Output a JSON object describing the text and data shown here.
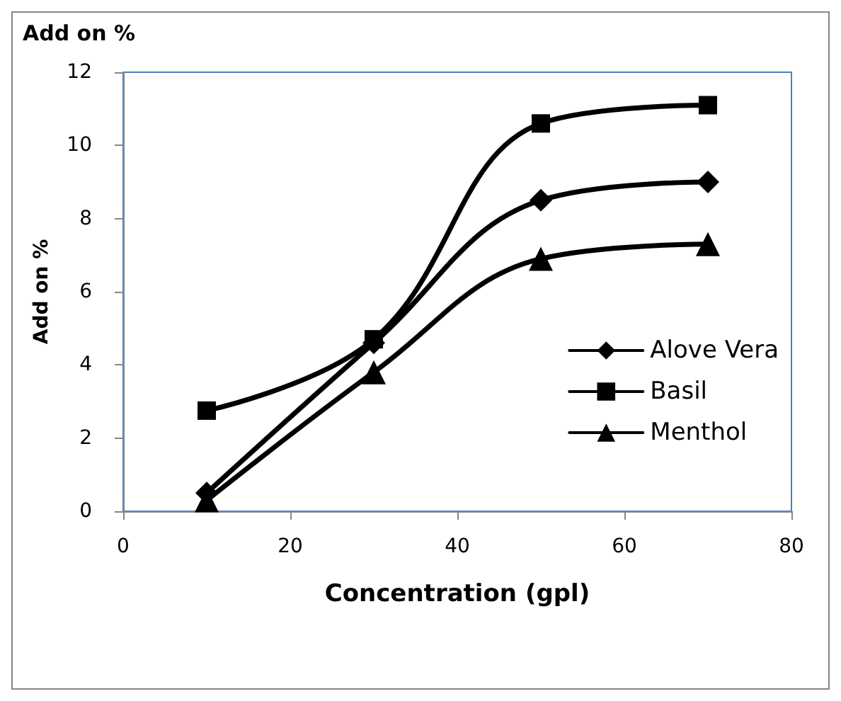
{
  "chart_data": {
    "type": "line",
    "title": "Add on %",
    "xlabel": "Concentration (gpl)",
    "ylabel": "Add on %",
    "x": [
      10,
      30,
      50,
      70
    ],
    "series": [
      {
        "name": "Alove Vera",
        "color": "#000000",
        "marker": "diamond",
        "values": [
          0.5,
          4.6,
          8.5,
          9.0
        ]
      },
      {
        "name": "Basil",
        "color": "#000000",
        "marker": "square",
        "values": [
          2.75,
          4.7,
          10.6,
          11.1
        ]
      },
      {
        "name": "Menthol",
        "color": "#000000",
        "marker": "triangle",
        "values": [
          0.3,
          3.8,
          6.9,
          7.3
        ]
      }
    ],
    "xlim": [
      0,
      80
    ],
    "xticks": [
      0,
      20,
      40,
      60,
      80
    ],
    "ylim": [
      0,
      12
    ],
    "yticks": [
      0,
      2,
      4,
      6,
      8,
      10,
      12
    ],
    "grid": false,
    "legend": "right",
    "line_style": "solid"
  }
}
